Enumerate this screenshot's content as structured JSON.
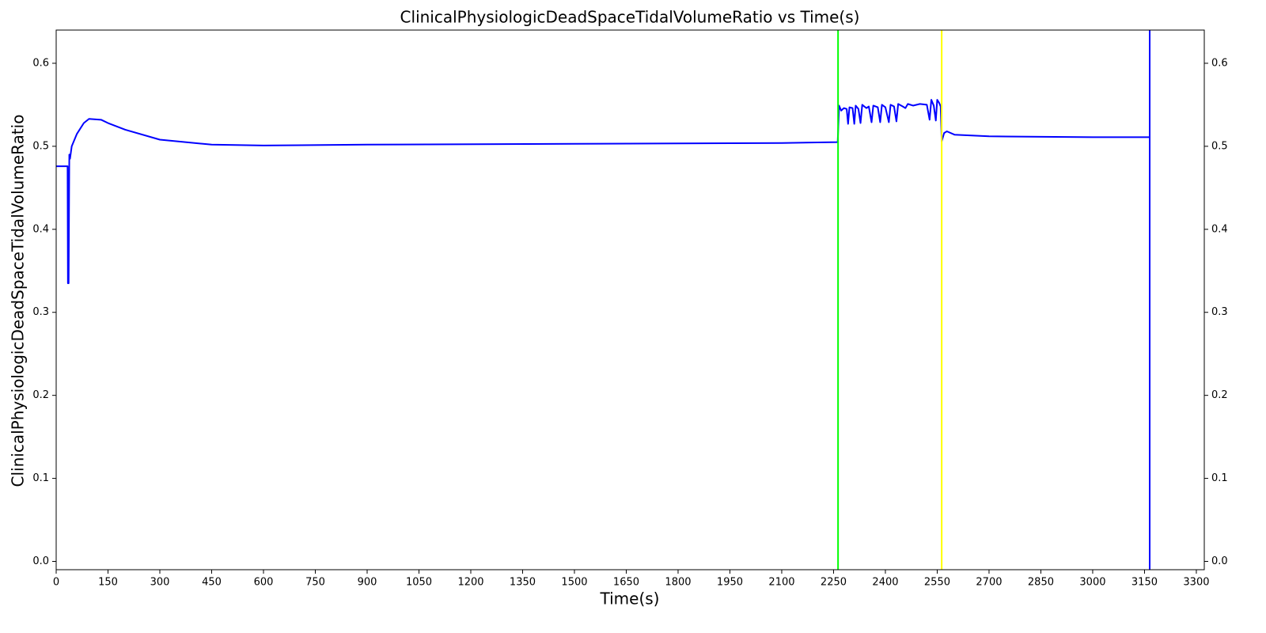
{
  "chart_data": {
    "type": "line",
    "title": "ClinicalPhysiologicDeadSpaceTidalVolumeRatio vs Time(s)",
    "x_label": "Time(s)",
    "y_label": "ClinicalPhysiologicDeadSpaceTidalVolumeRatio",
    "x": [
      0,
      33,
      34,
      36,
      38,
      40,
      45,
      60,
      80,
      95,
      130,
      150,
      200,
      300,
      450,
      600,
      900,
      1500,
      2100,
      2262,
      2266,
      2272,
      2280,
      2288,
      2292,
      2296,
      2305,
      2310,
      2314,
      2322,
      2328,
      2333,
      2345,
      2352,
      2360,
      2365,
      2378,
      2385,
      2390,
      2400,
      2410,
      2415,
      2425,
      2432,
      2437,
      2450,
      2458,
      2465,
      2480,
      2500,
      2520,
      2528,
      2533,
      2540,
      2546,
      2550,
      2556,
      2560,
      2563,
      2570,
      2578,
      2600,
      2700,
      3000,
      3165
    ],
    "series": [
      {
        "name": "ClinicalPhysiologicDeadSpaceTidalVolumeRatio",
        "color": "#0000ff",
        "values": [
          0.476,
          0.476,
          0.335,
          0.335,
          0.49,
          0.485,
          0.5,
          0.515,
          0.528,
          0.533,
          0.532,
          0.528,
          0.52,
          0.508,
          0.502,
          0.501,
          0.502,
          0.503,
          0.504,
          0.505,
          0.549,
          0.543,
          0.546,
          0.545,
          0.527,
          0.547,
          0.546,
          0.527,
          0.549,
          0.545,
          0.528,
          0.55,
          0.546,
          0.548,
          0.529,
          0.549,
          0.547,
          0.529,
          0.55,
          0.547,
          0.529,
          0.55,
          0.548,
          0.53,
          0.551,
          0.548,
          0.546,
          0.551,
          0.549,
          0.551,
          0.55,
          0.532,
          0.556,
          0.549,
          0.531,
          0.556,
          0.552,
          0.548,
          0.506,
          0.516,
          0.518,
          0.514,
          0.512,
          0.511,
          0.511
        ]
      }
    ],
    "vlines": [
      {
        "x": 2263,
        "color": "#00ff00"
      },
      {
        "x": 2563,
        "color": "#ffff00"
      },
      {
        "x": 3165,
        "color": "#0000ff"
      }
    ],
    "xlim": [
      0,
      3323
    ],
    "ylim": [
      -0.01,
      0.64
    ],
    "xticks": [
      0,
      150,
      300,
      450,
      600,
      750,
      900,
      1050,
      1200,
      1350,
      1500,
      1650,
      1800,
      1950,
      2100,
      2250,
      2400,
      2550,
      2700,
      2850,
      3000,
      3150,
      3300
    ],
    "yticks": [
      {
        "value": 0,
        "label": "0.0"
      },
      0.1,
      0.2,
      0.3,
      0.4,
      0.5,
      0.6
    ],
    "mirror_y_axis": true
  }
}
